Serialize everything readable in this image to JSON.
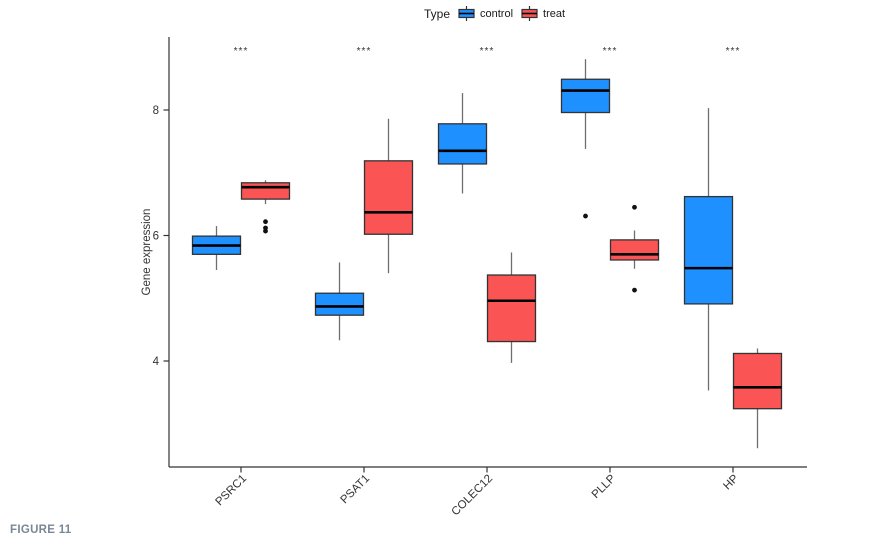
{
  "figure_label": "FIGURE 11",
  "legend": {
    "title": "Type",
    "items": [
      {
        "label": "control",
        "color": "#1E90FF"
      },
      {
        "label": "treat",
        "color": "#FA5454"
      }
    ]
  },
  "chart_data": {
    "type": "boxplot",
    "title": "",
    "xlabel": "",
    "ylabel": "Gene expression",
    "yticks": [
      4,
      6,
      8
    ],
    "ylim": [
      2.35,
      9.2
    ],
    "grid": false,
    "legend_position": "top-center",
    "categories": [
      "PSRC1",
      "PSAT1",
      "COLEC12",
      "PLLP",
      "HP"
    ],
    "significance": [
      "***",
      "***",
      "***",
      "***",
      "***"
    ],
    "series": [
      {
        "name": "control",
        "color": "#1E90FF",
        "boxes": [
          {
            "whislo": 5.45,
            "q1": 5.7,
            "med": 5.84,
            "q3": 5.99,
            "whishi": 6.15,
            "outliers": []
          },
          {
            "whislo": 4.33,
            "q1": 4.73,
            "med": 4.87,
            "q3": 5.08,
            "whishi": 5.57,
            "outliers": []
          },
          {
            "whislo": 6.67,
            "q1": 7.14,
            "med": 7.35,
            "q3": 7.78,
            "whishi": 8.27,
            "outliers": []
          },
          {
            "whislo": 7.38,
            "q1": 7.96,
            "med": 8.31,
            "q3": 8.49,
            "whishi": 8.81,
            "outliers": [
              6.31
            ]
          },
          {
            "whislo": 3.53,
            "q1": 4.91,
            "med": 5.48,
            "q3": 6.62,
            "whishi": 8.03,
            "outliers": []
          }
        ]
      },
      {
        "name": "treat",
        "color": "#FA5454",
        "boxes": [
          {
            "whislo": 6.5,
            "q1": 6.58,
            "med": 6.77,
            "q3": 6.84,
            "whishi": 6.88,
            "outliers": [
              6.22,
              6.12,
              6.07
            ]
          },
          {
            "whislo": 5.4,
            "q1": 6.02,
            "med": 6.37,
            "q3": 7.19,
            "whishi": 7.86,
            "outliers": []
          },
          {
            "whislo": 3.97,
            "q1": 4.31,
            "med": 4.96,
            "q3": 5.37,
            "whishi": 5.73,
            "outliers": []
          },
          {
            "whislo": 5.47,
            "q1": 5.61,
            "med": 5.7,
            "q3": 5.93,
            "whishi": 6.08,
            "outliers": [
              6.45,
              5.13
            ]
          },
          {
            "whislo": 2.61,
            "q1": 3.24,
            "med": 3.58,
            "q3": 4.12,
            "whishi": 4.2,
            "outliers": []
          }
        ]
      }
    ]
  },
  "colors": {
    "box_border": "#333333",
    "whisker": "#6e6e6e",
    "median": "#000000",
    "axis": "#333333",
    "outlier": "#111111",
    "star": "#333333"
  }
}
